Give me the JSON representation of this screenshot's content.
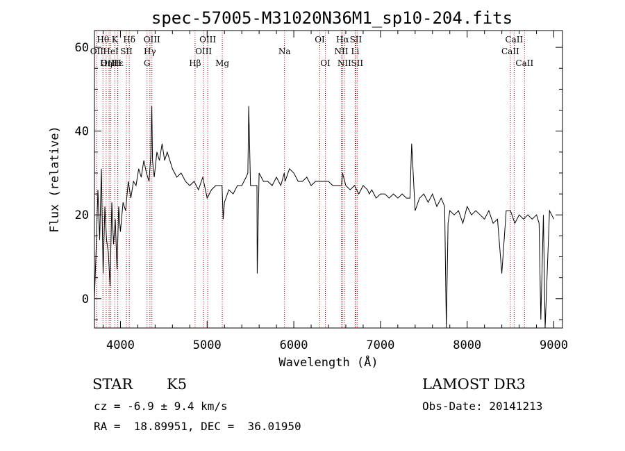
{
  "chart_data": {
    "type": "line",
    "title": "spec-57005-M31020N36M1_sp10-204.fits",
    "xlabel": "Wavelength (Å)",
    "ylabel": "Flux (relative)",
    "xlim": [
      3700,
      9100
    ],
    "ylim": [
      -7,
      64
    ],
    "x_ticks": [
      4000,
      5000,
      6000,
      7000,
      8000,
      9000
    ],
    "x_tick_labels": [
      "4000",
      "5000",
      "6000",
      "7000",
      "8000",
      "9000"
    ],
    "y_ticks": [
      0,
      20,
      40,
      60
    ],
    "y_tick_labels": [
      "0",
      "20",
      "40",
      "60"
    ],
    "series": [
      {
        "name": "flux",
        "color": "#000000",
        "x": [
          3700,
          3720,
          3740,
          3760,
          3780,
          3800,
          3820,
          3840,
          3860,
          3880,
          3900,
          3920,
          3940,
          3960,
          3980,
          4000,
          4030,
          4060,
          4090,
          4120,
          4150,
          4180,
          4210,
          4240,
          4270,
          4300,
          4330,
          4350,
          4362,
          4370,
          4390,
          4420,
          4450,
          4480,
          4510,
          4540,
          4570,
          4600,
          4650,
          4700,
          4750,
          4800,
          4850,
          4900,
          4950,
          5000,
          5050,
          5100,
          5150,
          5172,
          5185,
          5200,
          5250,
          5300,
          5350,
          5400,
          5450,
          5470,
          5480,
          5500,
          5550,
          5575,
          5578,
          5600,
          5650,
          5700,
          5750,
          5800,
          5850,
          5890,
          5900,
          5950,
          6000,
          6050,
          6100,
          6150,
          6200,
          6250,
          6300,
          6350,
          6400,
          6450,
          6500,
          6550,
          6563,
          6600,
          6650,
          6700,
          6750,
          6800,
          6850,
          6870,
          6900,
          6950,
          7000,
          7050,
          7100,
          7150,
          7200,
          7250,
          7300,
          7340,
          7360,
          7400,
          7450,
          7500,
          7550,
          7600,
          7650,
          7700,
          7740,
          7760,
          7780,
          7800,
          7850,
          7900,
          7950,
          8000,
          8050,
          8100,
          8150,
          8200,
          8250,
          8300,
          8350,
          8400,
          8450,
          8500,
          8550,
          8600,
          8650,
          8700,
          8750,
          8800,
          8830,
          8850,
          8880,
          8900,
          8950,
          9000
        ],
        "y": [
          0,
          12,
          26,
          14,
          31,
          6,
          22,
          14,
          11,
          3,
          23,
          13,
          19,
          7,
          22,
          16,
          23,
          21,
          28,
          24,
          28,
          27,
          31,
          29,
          33,
          30,
          28,
          34,
          46,
          33,
          29,
          35,
          33,
          37,
          33,
          35,
          33,
          31,
          29,
          30,
          28,
          27,
          28,
          26,
          29,
          24,
          26,
          27,
          27,
          27,
          19,
          23,
          26,
          25,
          27,
          27,
          29,
          30,
          46,
          27,
          27,
          27,
          6,
          30,
          28,
          28,
          27,
          29,
          27,
          30,
          28,
          31,
          30,
          28,
          28,
          29,
          27,
          28,
          28,
          28,
          28,
          27,
          27,
          27,
          30,
          27,
          26,
          27,
          25,
          27,
          26,
          25,
          26,
          24,
          25,
          25,
          24,
          25,
          24,
          25,
          24,
          24,
          37,
          21,
          24,
          25,
          23,
          25,
          22,
          24,
          22,
          -7,
          18,
          21,
          20,
          21,
          18,
          22,
          20,
          21,
          20,
          19,
          21,
          18,
          19,
          6,
          21,
          21,
          18,
          20,
          19,
          20,
          19,
          20,
          18,
          -5,
          20,
          -7,
          21,
          19
        ]
      }
    ],
    "emission_lines": [
      {
        "name": "Hθ",
        "wavelength": 3798,
        "row": 1
      },
      {
        "name": "OII",
        "wavelength": 3727,
        "row": 2
      },
      {
        "name": "OIII",
        "wavelength": 3869,
        "row": 3
      },
      {
        "name": "Hε",
        "wavelength": 3970,
        "row": 3
      },
      {
        "name": "K",
        "wavelength": 3934,
        "row": 1
      },
      {
        "name": "HeI",
        "wavelength": 3889,
        "row": 2
      },
      {
        "name": "SII",
        "wavelength": 4069,
        "row": 2
      },
      {
        "name": "Hη",
        "wavelength": 3835,
        "row": 3
      },
      {
        "name": "H",
        "wavelength": 3968,
        "row": 3
      },
      {
        "name": "Hδ",
        "wavelength": 4102,
        "row": 1
      },
      {
        "name": "OIII",
        "wavelength": 4363,
        "row": 1
      },
      {
        "name": "Hγ",
        "wavelength": 4340,
        "row": 2
      },
      {
        "name": "G",
        "wavelength": 4307,
        "row": 3
      },
      {
        "name": "OIII",
        "wavelength": 5007,
        "row": 1
      },
      {
        "name": "OIII",
        "wavelength": 4959,
        "row": 2
      },
      {
        "name": "Hβ",
        "wavelength": 4861,
        "row": 3
      },
      {
        "name": "Mg",
        "wavelength": 5175,
        "row": 3
      },
      {
        "name": "Na",
        "wavelength": 5893,
        "row": 2
      },
      {
        "name": "OI",
        "wavelength": 6300,
        "row": 1
      },
      {
        "name": "OI",
        "wavelength": 6364,
        "row": 3
      },
      {
        "name": "Hα",
        "wavelength": 6563,
        "row": 1
      },
      {
        "name": "SII",
        "wavelength": 6716,
        "row": 1
      },
      {
        "name": "NII",
        "wavelength": 6548,
        "row": 2
      },
      {
        "name": "Li",
        "wavelength": 6708,
        "row": 2
      },
      {
        "name": "NII",
        "wavelength": 6583,
        "row": 3
      },
      {
        "name": "SII",
        "wavelength": 6731,
        "row": 3
      },
      {
        "name": "CaII",
        "wavelength": 8542,
        "row": 1
      },
      {
        "name": "CaII",
        "wavelength": 8498,
        "row": 2
      },
      {
        "name": "CaII",
        "wavelength": 8662,
        "row": 3
      }
    ]
  },
  "info": {
    "object_class": "STAR",
    "subclass": "K5",
    "survey": "LAMOST DR3",
    "redshift": "cz = -6.9 ± 9.4 km/s",
    "obs_date": "Obs-Date: 20141213",
    "coords": "RA =  18.89951, DEC =  36.01950"
  },
  "colors": {
    "line_marker": "#aa0000",
    "spectrum": "#000000",
    "axes": "#000000"
  }
}
